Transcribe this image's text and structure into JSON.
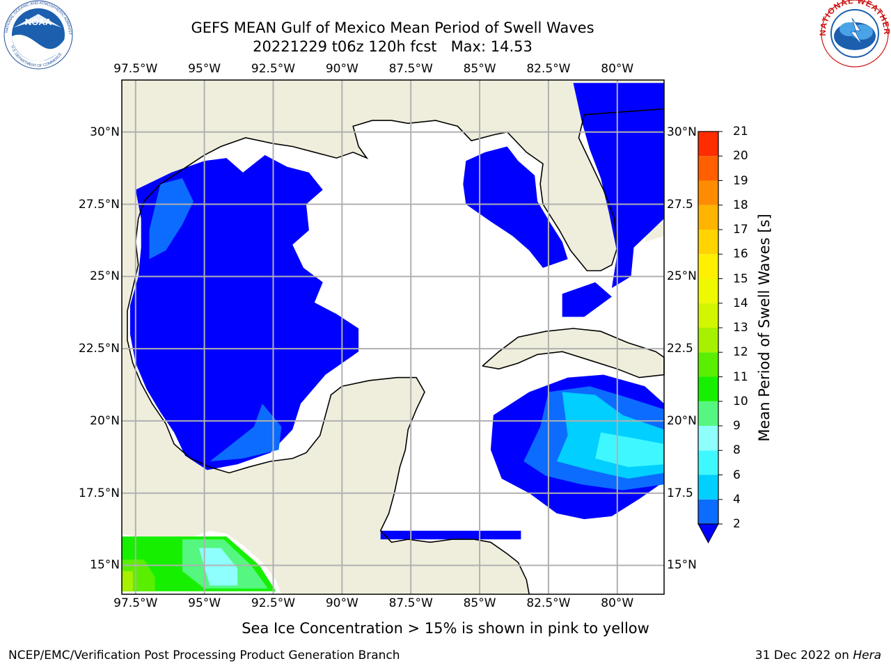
{
  "header": {
    "title_line1": "GEFS MEAN Gulf of Mexico Mean Period of Swell Waves",
    "title_line2": "20221229 t06z 120h fcst   Max: 14.53"
  },
  "map": {
    "lon_labels": [
      "97.5°W",
      "95°W",
      "92.5°W",
      "90°W",
      "87.5°W",
      "85°W",
      "82.5°W",
      "80°W"
    ],
    "lat_labels_left": [
      "30°N",
      "27.5°N",
      "25°N",
      "22.5°N",
      "20°N",
      "17.5°N",
      "15°N"
    ],
    "lat_labels_right": [
      "30°N",
      "27.5",
      "25°N",
      "22.5",
      "20°N",
      "17.5",
      "15°N"
    ],
    "lon_range": [
      -98,
      -78.3
    ],
    "lat_range": [
      14,
      31.8
    ],
    "land_color": "#efeedc",
    "ocean_color": "#ffffff",
    "grid_color": "#b0b0b0"
  },
  "colorbar": {
    "title": "Mean Period of Swell Waves [s]",
    "tick_labels": [
      "2",
      "4",
      "6",
      "8",
      "9",
      "10",
      "11",
      "12",
      "13",
      "14",
      "15",
      "16",
      "17",
      "18",
      "19",
      "20",
      "21"
    ],
    "levels": [
      2,
      4,
      6,
      8,
      9,
      10,
      11,
      12,
      13,
      14,
      15,
      16,
      17,
      18,
      19,
      20,
      21
    ],
    "colors": [
      "#0c6cff",
      "#00cfff",
      "#3ff7ff",
      "#8ffffd",
      "#55f780",
      "#16f000",
      "#5aef00",
      "#a6f000",
      "#d2f600",
      "#eef800",
      "#fff000",
      "#ffd400",
      "#ffb400",
      "#ff8c00",
      "#ff5f00",
      "#ff2c00"
    ],
    "extend_color": "#0000ff"
  },
  "legend_note": "Sea Ice Concentration > 15% is shown in pink to yellow",
  "footer": {
    "left": "NCEP/EMC/Verification Post Processing Product Generation Branch",
    "right_date": "31 Dec 2022 on ",
    "right_host": "Hera"
  },
  "logos": {
    "left": "noaa-logo",
    "left_ring_text": "NATIONAL OCEANIC AND ATMOSPHERIC ADMINISTRATION",
    "left_ring_text_bottom": "U.S. DEPARTMENT OF COMMERCE",
    "left_center_text": "NOAA",
    "right": "nws-logo",
    "right_ring_text": "NATIONAL WEATHER SERVICE"
  }
}
